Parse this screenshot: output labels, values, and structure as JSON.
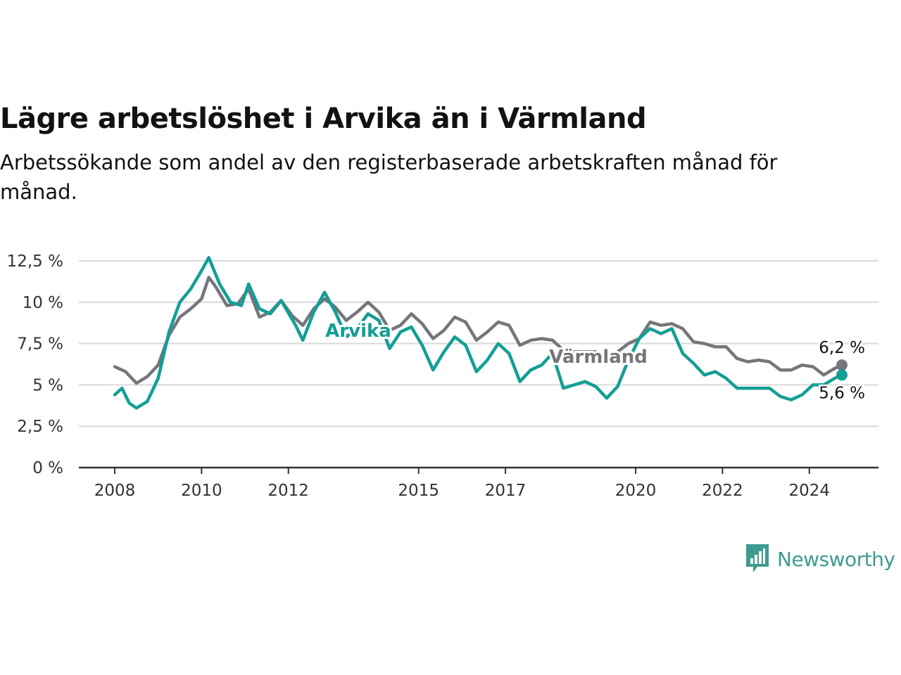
{
  "title": "Lägre arbetslöshet i Arvika än i Värmland",
  "subtitle": "Arbetssökande som andel av den registerbaserade arbetskraften månad för månad.",
  "brand": {
    "name": "Newsworthy",
    "color": "#3d9b91"
  },
  "chart_data": {
    "type": "line",
    "y_ticks": [
      "0 %",
      "2,5 %",
      "5 %",
      "7,5 %",
      "10 %",
      "12,5 %"
    ],
    "y_tick_values": [
      0,
      2.5,
      5,
      7.5,
      10,
      12.5
    ],
    "ylim": [
      0,
      12.5
    ],
    "x_ticks": [
      "2008",
      "2010",
      "2012",
      "2015",
      "2017",
      "2020",
      "2022",
      "2024"
    ],
    "xlim": [
      "2008-01",
      "2024-10"
    ],
    "grid": true,
    "series": [
      {
        "name": "Värmland",
        "color": "#76757a",
        "end_label": "6,2 %",
        "points": [
          [
            "2008-01",
            6.1
          ],
          [
            "2008-04",
            5.8
          ],
          [
            "2008-07",
            5.1
          ],
          [
            "2008-10",
            5.5
          ],
          [
            "2009-01",
            6.2
          ],
          [
            "2009-04",
            8.0
          ],
          [
            "2009-07",
            9.1
          ],
          [
            "2009-10",
            9.6
          ],
          [
            "2010-01",
            10.2
          ],
          [
            "2010-03",
            11.5
          ],
          [
            "2010-05",
            10.9
          ],
          [
            "2010-08",
            9.8
          ],
          [
            "2010-11",
            9.9
          ],
          [
            "2011-02",
            10.8
          ],
          [
            "2011-05",
            9.1
          ],
          [
            "2011-08",
            9.4
          ],
          [
            "2011-11",
            10.1
          ],
          [
            "2012-02",
            9.2
          ],
          [
            "2012-05",
            8.6
          ],
          [
            "2012-08",
            9.6
          ],
          [
            "2012-11",
            10.2
          ],
          [
            "2013-02",
            9.7
          ],
          [
            "2013-05",
            8.9
          ],
          [
            "2013-08",
            9.4
          ],
          [
            "2013-11",
            10.0
          ],
          [
            "2014-02",
            9.4
          ],
          [
            "2014-05",
            8.3
          ],
          [
            "2014-08",
            8.6
          ],
          [
            "2014-11",
            9.3
          ],
          [
            "2015-02",
            8.7
          ],
          [
            "2015-05",
            7.8
          ],
          [
            "2015-08",
            8.3
          ],
          [
            "2015-11",
            9.1
          ],
          [
            "2016-02",
            8.8
          ],
          [
            "2016-05",
            7.7
          ],
          [
            "2016-08",
            8.2
          ],
          [
            "2016-11",
            8.8
          ],
          [
            "2017-02",
            8.6
          ],
          [
            "2017-05",
            7.4
          ],
          [
            "2017-08",
            7.7
          ],
          [
            "2017-11",
            7.8
          ],
          [
            "2018-02",
            7.7
          ],
          [
            "2018-05",
            7.1
          ],
          [
            "2018-08",
            7.0
          ],
          [
            "2018-11",
            7.0
          ],
          [
            "2019-02",
            7.0
          ],
          [
            "2019-05",
            6.8
          ],
          [
            "2019-08",
            7.0
          ],
          [
            "2019-11",
            7.5
          ],
          [
            "2020-02",
            7.8
          ],
          [
            "2020-05",
            8.8
          ],
          [
            "2020-08",
            8.6
          ],
          [
            "2020-11",
            8.7
          ],
          [
            "2021-02",
            8.4
          ],
          [
            "2021-05",
            7.6
          ],
          [
            "2021-08",
            7.5
          ],
          [
            "2021-11",
            7.3
          ],
          [
            "2022-02",
            7.3
          ],
          [
            "2022-05",
            6.6
          ],
          [
            "2022-08",
            6.4
          ],
          [
            "2022-11",
            6.5
          ],
          [
            "2023-02",
            6.4
          ],
          [
            "2023-05",
            5.9
          ],
          [
            "2023-08",
            5.9
          ],
          [
            "2023-11",
            6.2
          ],
          [
            "2024-02",
            6.1
          ],
          [
            "2024-05",
            5.6
          ],
          [
            "2024-08",
            6.0
          ],
          [
            "2024-10",
            6.2
          ]
        ]
      },
      {
        "name": "Arvika",
        "color": "#129f95",
        "end_label": "5,6 %",
        "points": [
          [
            "2008-01",
            4.4
          ],
          [
            "2008-03",
            4.8
          ],
          [
            "2008-05",
            3.9
          ],
          [
            "2008-07",
            3.6
          ],
          [
            "2008-10",
            4.0
          ],
          [
            "2009-01",
            5.4
          ],
          [
            "2009-04",
            8.2
          ],
          [
            "2009-07",
            10.0
          ],
          [
            "2009-10",
            10.8
          ],
          [
            "2010-01",
            11.9
          ],
          [
            "2010-03",
            12.7
          ],
          [
            "2010-06",
            11.1
          ],
          [
            "2010-09",
            10.0
          ],
          [
            "2010-12",
            9.8
          ],
          [
            "2011-02",
            11.1
          ],
          [
            "2011-05",
            9.6
          ],
          [
            "2011-08",
            9.3
          ],
          [
            "2011-11",
            10.1
          ],
          [
            "2012-03",
            8.6
          ],
          [
            "2012-05",
            7.7
          ],
          [
            "2012-08",
            9.4
          ],
          [
            "2012-11",
            10.6
          ],
          [
            "2013-02",
            9.4
          ],
          [
            "2013-05",
            7.9
          ],
          [
            "2013-08",
            8.4
          ],
          [
            "2013-11",
            9.3
          ],
          [
            "2014-02",
            8.9
          ],
          [
            "2014-05",
            7.2
          ],
          [
            "2014-08",
            8.2
          ],
          [
            "2014-11",
            8.5
          ],
          [
            "2015-02",
            7.4
          ],
          [
            "2015-05",
            5.9
          ],
          [
            "2015-08",
            7.0
          ],
          [
            "2015-11",
            7.9
          ],
          [
            "2016-02",
            7.4
          ],
          [
            "2016-05",
            5.8
          ],
          [
            "2016-08",
            6.5
          ],
          [
            "2016-11",
            7.5
          ],
          [
            "2017-02",
            6.9
          ],
          [
            "2017-05",
            5.2
          ],
          [
            "2017-08",
            5.9
          ],
          [
            "2017-11",
            6.2
          ],
          [
            "2018-02",
            6.9
          ],
          [
            "2018-05",
            4.8
          ],
          [
            "2018-08",
            5.0
          ],
          [
            "2018-11",
            5.2
          ],
          [
            "2019-02",
            4.9
          ],
          [
            "2019-05",
            4.2
          ],
          [
            "2019-08",
            4.9
          ],
          [
            "2019-11",
            6.5
          ],
          [
            "2020-02",
            7.8
          ],
          [
            "2020-05",
            8.4
          ],
          [
            "2020-08",
            8.1
          ],
          [
            "2020-11",
            8.4
          ],
          [
            "2021-02",
            6.9
          ],
          [
            "2021-05",
            6.3
          ],
          [
            "2021-08",
            5.6
          ],
          [
            "2021-11",
            5.8
          ],
          [
            "2022-02",
            5.4
          ],
          [
            "2022-05",
            4.8
          ],
          [
            "2022-08",
            4.8
          ],
          [
            "2022-11",
            4.8
          ],
          [
            "2023-02",
            4.8
          ],
          [
            "2023-05",
            4.3
          ],
          [
            "2023-08",
            4.1
          ],
          [
            "2023-11",
            4.4
          ],
          [
            "2024-02",
            5.0
          ],
          [
            "2024-05",
            5.0
          ],
          [
            "2024-08",
            5.4
          ],
          [
            "2024-10",
            5.6
          ]
        ]
      }
    ]
  }
}
